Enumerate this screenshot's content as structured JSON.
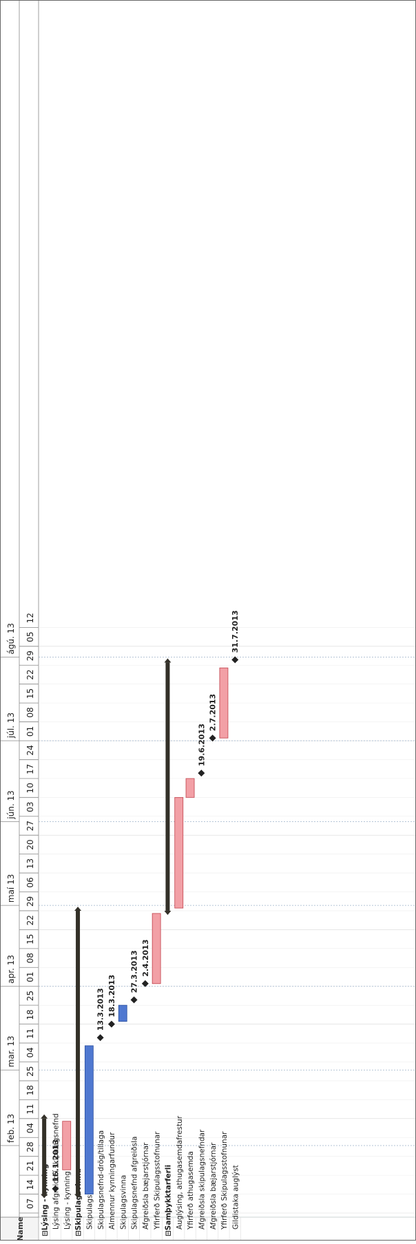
{
  "task_header": "Name",
  "tasks": [
    {
      "name": "Lýsing - kynning",
      "level": 0,
      "summary": true,
      "start": "2013-01-14",
      "end": "2013-02-11"
    },
    {
      "name": "Lýsing afgreidd í skipulagsnefnd",
      "level": 1,
      "milestone": "2013-01-16",
      "label": "16.1.2013"
    },
    {
      "name": "Lýsing - kynning",
      "level": 1,
      "bar": [
        "2013-01-23",
        "2013-02-10"
      ],
      "color": "red"
    },
    {
      "name": "Skipulagsvinna",
      "level": 0,
      "summary": true,
      "start": "2013-01-14",
      "end": "2013-04-29"
    },
    {
      "name": "Skipulagsvinna",
      "level": 1,
      "bar": [
        "2013-01-14",
        "2013-03-10"
      ],
      "color": "blue"
    },
    {
      "name": "Skipulagsnefnd-drög/tillaga",
      "level": 1,
      "milestone": "2013-03-13",
      "label": "13.3.2013"
    },
    {
      "name": "Almennur kynningarfundur",
      "level": 1,
      "milestone": "2013-03-18",
      "label": "18.3.2013"
    },
    {
      "name": "Skipulagsvinna",
      "level": 1,
      "bar": [
        "2013-03-19",
        "2013-03-25"
      ],
      "color": "blue"
    },
    {
      "name": "Skipulagsnefnd afgreiðsla",
      "level": 1,
      "milestone": "2013-03-27",
      "label": "27.3.2013"
    },
    {
      "name": "Afgreiðsla bæjarstjórnar",
      "level": 1,
      "milestone": "2013-04-02",
      "label": "2.4.2013"
    },
    {
      "name": "Yfirferð Skipulagsstofnunar",
      "level": 1,
      "bar": [
        "2013-04-02",
        "2013-04-28"
      ],
      "color": "red"
    },
    {
      "name": "Samþykktarferli",
      "level": 0,
      "summary": true,
      "start": "2013-04-29",
      "end": "2013-07-30"
    },
    {
      "name": "Auglýsing, athugasemdafrestur",
      "level": 1,
      "bar": [
        "2013-04-30",
        "2013-06-10"
      ],
      "color": "red"
    },
    {
      "name": "Yfirferð athugasemda",
      "level": 1,
      "bar": [
        "2013-06-10",
        "2013-06-17"
      ],
      "color": "red"
    },
    {
      "name": "Afgreiðsla skipulagsnefndar",
      "level": 1,
      "milestone": "2013-06-19",
      "label": "19.6.2013"
    },
    {
      "name": "Afgreiðsla bæjarstjórnar",
      "level": 1,
      "milestone": "2013-07-02",
      "label": "2.7.2013"
    },
    {
      "name": "Yfirferð Skipulagsstofnunar",
      "level": 1,
      "bar": [
        "2013-07-02",
        "2013-07-28"
      ],
      "color": "red"
    },
    {
      "name": "Gildistaka auglýst",
      "level": 1,
      "milestone": "2013-07-31",
      "label": "31.7.2013"
    }
  ],
  "timescale": {
    "months": [
      "feb. 13",
      "mar. 13",
      "apr. 13",
      "maí 13",
      "jún. 13",
      "júl. 13",
      "ágú. 13"
    ],
    "weeks": [
      "07",
      "14",
      "21",
      "28",
      "04",
      "11",
      "18",
      "25",
      "04",
      "11",
      "18",
      "25",
      "01",
      "08",
      "15",
      "22",
      "29",
      "06",
      "13",
      "20",
      "27",
      "03",
      "10",
      "17",
      "24",
      "01",
      "08",
      "15",
      "22",
      "29",
      "05",
      "12"
    ]
  },
  "chart_data": {
    "type": "gantt",
    "x_range": [
      "2013-01-07",
      "2013-08-18"
    ],
    "colors": {
      "red": "#f2a0a6",
      "blue": "#4f78d0",
      "summary": "#333028"
    }
  }
}
